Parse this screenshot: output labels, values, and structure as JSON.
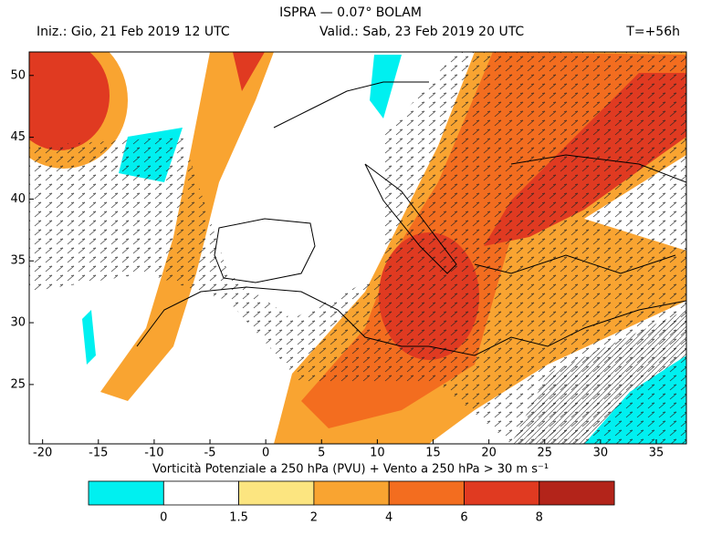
{
  "header": {
    "title": "ISPRA — 0.07° BOLAM",
    "init": "Iniz.: Gio, 21 Feb 2019  12 UTC",
    "valid": "Valid.: Sab, 23 Feb 2019  20 UTC",
    "lead": "T=+56h"
  },
  "map": {
    "xlim": [
      -21.2,
      37.7
    ],
    "ylim": [
      20.2,
      51.9
    ],
    "xticks": [
      -20,
      -15,
      -10,
      -5,
      0,
      5,
      10,
      15,
      20,
      25,
      30,
      35
    ],
    "yticks": [
      25,
      30,
      35,
      40,
      45,
      50
    ]
  },
  "caption": "Vorticità Potenziale a 250 hPa (PVU) + Vento a 250 hPa > 30 m s⁻¹",
  "colorbar": {
    "colors": [
      "#00f0f0",
      "#ffffff",
      "#fce580",
      "#f9a431",
      "#f36d1f",
      "#e03a21",
      "#b3241a"
    ],
    "labels": [
      0,
      1.5,
      2,
      4,
      6,
      8
    ]
  }
}
